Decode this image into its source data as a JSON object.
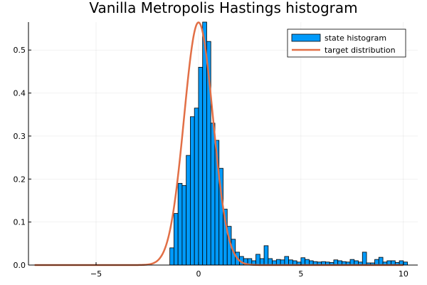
{
  "chart_data": {
    "type": "bar",
    "title": "Vanilla Metropolis Hastings histogram",
    "xlabel": "",
    "ylabel": "",
    "xlim": [
      -8.3,
      10.7
    ],
    "ylim": [
      0,
      0.565
    ],
    "xticks": [
      -5,
      0,
      5,
      10
    ],
    "xtick_labels": [
      "−5",
      "0",
      "5",
      "10"
    ],
    "yticks": [
      0.0,
      0.1,
      0.2,
      0.3,
      0.4,
      0.5
    ],
    "ytick_labels": [
      "0.0",
      "0.1",
      "0.2",
      "0.3",
      "0.4",
      "0.5"
    ],
    "grid": true,
    "legend_position": "top-right",
    "bin_width": 0.2,
    "series": [
      {
        "name": "state histogram",
        "kind": "histogram",
        "color": "#009AFA",
        "bin_starts": [
          -1.4,
          -1.2,
          -1.0,
          -0.8,
          -0.6,
          -0.4,
          -0.2,
          0.0,
          0.2,
          0.4,
          0.6,
          0.8,
          1.0,
          1.2,
          1.4,
          1.6,
          1.8,
          2.0,
          2.2,
          2.4,
          2.6,
          2.8,
          3.0,
          3.2,
          3.4,
          3.6,
          3.8,
          4.0,
          4.2,
          4.4,
          4.6,
          4.8,
          5.0,
          5.2,
          5.4,
          5.6,
          5.8,
          6.0,
          6.2,
          6.4,
          6.6,
          6.8,
          7.0,
          7.2,
          7.4,
          7.6,
          7.8,
          8.0,
          8.2,
          8.4,
          8.6,
          8.8,
          9.0,
          9.2,
          9.4,
          9.6,
          9.8,
          10.0
        ],
        "values": [
          0.04,
          0.12,
          0.19,
          0.185,
          0.255,
          0.345,
          0.365,
          0.46,
          0.565,
          0.52,
          0.33,
          0.29,
          0.225,
          0.13,
          0.09,
          0.06,
          0.03,
          0.02,
          0.015,
          0.015,
          0.01,
          0.025,
          0.015,
          0.045,
          0.015,
          0.01,
          0.013,
          0.012,
          0.02,
          0.012,
          0.01,
          0.007,
          0.017,
          0.013,
          0.01,
          0.008,
          0.007,
          0.008,
          0.007,
          0.006,
          0.012,
          0.01,
          0.008,
          0.007,
          0.013,
          0.01,
          0.007,
          0.03,
          0.005,
          0.005,
          0.013,
          0.018,
          0.007,
          0.01,
          0.01,
          0.006,
          0.01,
          0.007
        ]
      },
      {
        "name": "target distribution",
        "kind": "line",
        "color": "#E26F46",
        "formula": "standard normal pdf (mean 0, sd 0.707)",
        "mean": 0,
        "sd": 0.707,
        "x_range": [
          -8,
          10
        ]
      }
    ]
  }
}
